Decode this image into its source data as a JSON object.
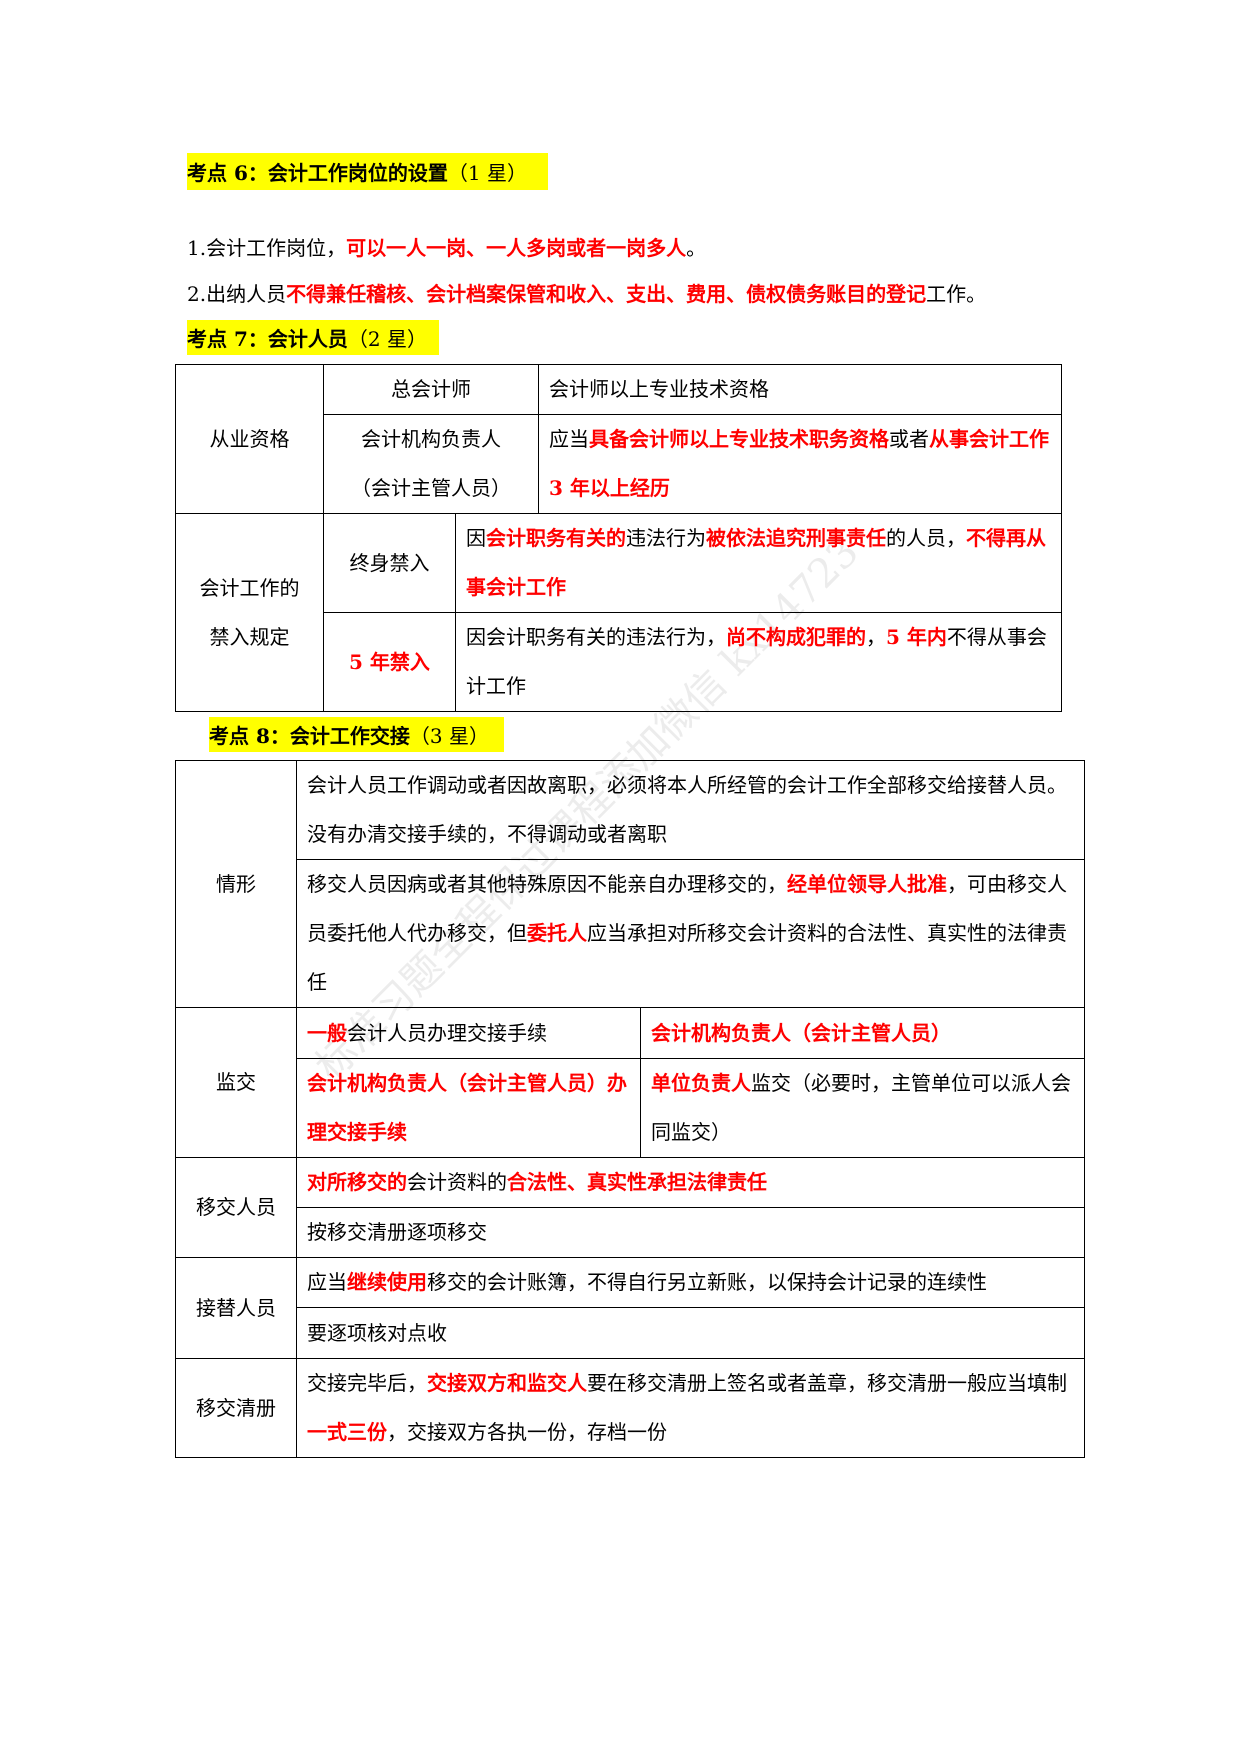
{
  "h6": {
    "bold": "考点 6：会计工作岗位的设置",
    "thin": "（1 星）"
  },
  "p1": [
    {
      "t": "1.会计工作岗位，"
    },
    {
      "t": "可以一人一岗、一人多岗或者一岗多人",
      "r": 1
    },
    {
      "t": "。"
    }
  ],
  "p2": [
    {
      "t": "2.出纳人员"
    },
    {
      "t": "不得兼任稽核、会计档案保管和收入、支出、费用、债权债务账目的登记",
      "r": 1
    },
    {
      "t": "工作。"
    }
  ],
  "h7": {
    "bold": "考点 7：会计人员",
    "thin": "（2 星）"
  },
  "t1": {
    "qual": "从业资格",
    "chief": "总会计师",
    "chief_req": [
      {
        "t": "会计师以上专业技术资格"
      }
    ],
    "head": "会计机构负责人",
    "head2": "（会计主管人员）",
    "head_req": [
      {
        "t": "应当"
      },
      {
        "t": "具备会计师以上专业技术职务资格",
        "r": 1
      },
      {
        "t": "或者"
      },
      {
        "t": "从事会计工作 3 年以上经历",
        "r": 1
      }
    ],
    "ban_a": "会计工作的",
    "ban_b": "禁入规定",
    "life": "终身禁入",
    "life_desc": [
      {
        "t": "因"
      },
      {
        "t": "会计职务有关的",
        "r": 1
      },
      {
        "t": "违法行为"
      },
      {
        "t": "被依法追究刑事责任",
        "r": 1
      },
      {
        "t": "的人员，"
      },
      {
        "t": "不得再从事会计工作",
        "r": 1
      }
    ],
    "five": "5 年禁入",
    "five_desc": [
      {
        "t": "因会计职务有关的违法行为，"
      },
      {
        "t": "尚不构成犯罪的",
        "r": 1
      },
      {
        "t": "，"
      },
      {
        "t": "5 年内",
        "r": 1
      },
      {
        "t": "不得从事会计工作"
      }
    ]
  },
  "h8": {
    "bold": "考点 8：会计工作交接",
    "thin": "（3 星）"
  },
  "t2": {
    "situation": "情形",
    "s1": [
      {
        "t": "会计人员工作调动或者因故离职，必须将本人所经管的会计工作全部移交给接替人员。没有办清交接手续的，不得调动或者离职"
      }
    ],
    "s2": [
      {
        "t": "移交人员因病或者其他特殊原因不能亲自办理移交的，"
      },
      {
        "t": "经单位领导人批准",
        "r": 1
      },
      {
        "t": "，可由移交人员委托他人代办移交，但"
      },
      {
        "t": "委托人",
        "r": 1
      },
      {
        "t": "应当承担对所移交会计资料的合法性、真实性的法律责任"
      }
    ],
    "supervise": "监交",
    "m1a": [
      {
        "t": "一般",
        "r": 1
      },
      {
        "t": "会计人员办理交接手续"
      }
    ],
    "m1b": [
      {
        "t": "会计机构负责人（会计主管人员）",
        "r": 1
      }
    ],
    "m2a": [
      {
        "t": "会计机构负责人（会计主管人员）办理交接手续",
        "r": 1
      }
    ],
    "m2b": [
      {
        "t": "单位负责人",
        "r": 1
      },
      {
        "t": "监交（必要时，主管单位可以派人会同监交）"
      }
    ],
    "handover": "移交人员",
    "h1": [
      {
        "t": "对所移交的",
        "r": 1
      },
      {
        "t": "会计资料的"
      },
      {
        "t": "合法性、真实性承担法律责任",
        "r": 1
      }
    ],
    "h2": [
      {
        "t": "按移交清册逐项移交"
      }
    ],
    "successor": "接替人员",
    "r1": [
      {
        "t": "应当"
      },
      {
        "t": "继续使用",
        "r": 1
      },
      {
        "t": "移交的会计账簿，不得自行另立新账，以保持会计记录的连续性"
      }
    ],
    "r2": [
      {
        "t": "要逐项核对点收"
      }
    ],
    "list": "移交清册",
    "l1": [
      {
        "t": "交接完毕后，"
      },
      {
        "t": "交接双方和监交人",
        "r": 1
      },
      {
        "t": "要在移交清册上签名或者盖章，移交清册一般应当填制"
      },
      {
        "t": "一式三份",
        "r": 1
      },
      {
        "t": "，交接双方各执一份，存档一份"
      }
    ]
  },
  "watermark": "标准习题全程保过课程添加微信 kx14723",
  "colors": {
    "highlight": "#ffff00",
    "emphasis": "#ff0000"
  }
}
